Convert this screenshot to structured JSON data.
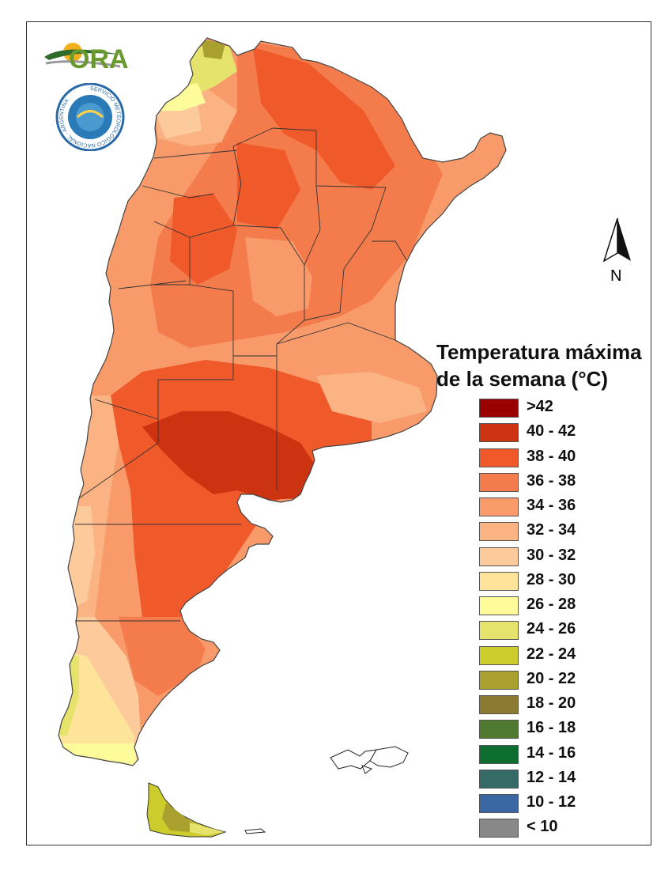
{
  "map": {
    "title_line1": "Temperatura máxima",
    "title_line2": "de la semana (°C)",
    "north_label": "N",
    "logo_text": "ORA",
    "seal_text": "SERVICIO METEOROLÓGICO NACIONAL · ARGENTINA",
    "legend": [
      {
        "label": ">42",
        "color": "#990000"
      },
      {
        "label": "40 - 42",
        "color": "#cc3311"
      },
      {
        "label": "38 - 40",
        "color": "#f05a2a"
      },
      {
        "label": "36 - 38",
        "color": "#f47c4c"
      },
      {
        "label": "34 - 36",
        "color": "#f89a6a"
      },
      {
        "label": "32 - 34",
        "color": "#fbb384"
      },
      {
        "label": "30 - 32",
        "color": "#fdca9c"
      },
      {
        "label": "28 - 30",
        "color": "#fde49a"
      },
      {
        "label": "26 - 28",
        "color": "#fdfb9a"
      },
      {
        "label": "24 - 26",
        "color": "#e6e36c"
      },
      {
        "label": "22 - 24",
        "color": "#cccc2c"
      },
      {
        "label": "20 - 22",
        "color": "#aaa030"
      },
      {
        "label": "18 - 20",
        "color": "#8d7a32"
      },
      {
        "label": "16 - 18",
        "color": "#4f7a30"
      },
      {
        "label": "14 - 16",
        "color": "#0e6e30"
      },
      {
        "label": "12 - 14",
        "color": "#356a66"
      },
      {
        "label": "10 - 12",
        "color": "#3a67a4"
      },
      {
        "label": "< 10",
        "color": "#888888"
      }
    ]
  }
}
